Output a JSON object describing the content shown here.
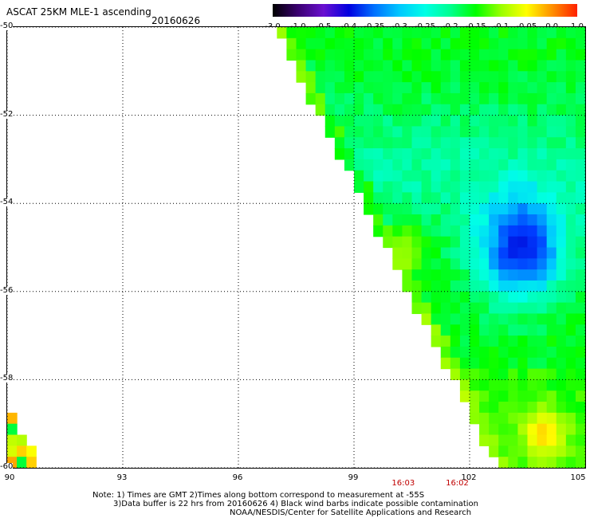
{
  "header": {
    "title": "ASCAT 25KM MLE-1 ascending",
    "date": "20160626"
  },
  "colorbar": {
    "labels": [
      "-3.0",
      "-1.0",
      "-0.5",
      "-0.4",
      "-0.35",
      "-0.3",
      "-0.25",
      "-0.2",
      "-0.15",
      "-0.1",
      "-0.05",
      "0.0",
      "1.0"
    ],
    "colors": [
      "#000000",
      "#3a0070",
      "#6a10d0",
      "#0000e0",
      "#0070ff",
      "#00c8ff",
      "#00ffe6",
      "#00ff90",
      "#00ff00",
      "#9aff00",
      "#ffff00",
      "#ff9000",
      "#ff2000"
    ]
  },
  "map": {
    "lat_labels": [
      "-50",
      "-52",
      "-54",
      "-56",
      "-58",
      "-60"
    ],
    "lon_labels": [
      "90",
      "93",
      "96",
      "99",
      "102",
      "105"
    ],
    "lat_range": [
      -60,
      -50
    ],
    "lon_range": [
      90,
      105
    ],
    "grid": "dotted",
    "swath_edge": [
      [
        96.8,
        -50
      ],
      [
        102.6,
        -60
      ]
    ],
    "low_mle_region": {
      "center_lon": 103.2,
      "center_lat": -54.9,
      "value": -0.4
    },
    "high_mle_spots": [
      {
        "lon": 100.2,
        "lat": -54.9,
        "value": -0.1
      },
      {
        "lon": 103.8,
        "lat": -59.1,
        "value": -0.05
      },
      {
        "lon": 90.2,
        "lat": -59.4,
        "value": -0.05
      }
    ]
  },
  "times": [
    {
      "label": "16:03",
      "lon": 100.3
    },
    {
      "label": "16:02",
      "lon": 101.7
    }
  ],
  "notes": {
    "line1": "Note: 1) Times are GMT 2)Times along bottom correspond to measurement at -55S",
    "line2": "3)Data buffer is 22 hrs from 20160626 4) Black wind barbs indicate possible contamination",
    "line3": "NOAA/NESDIS/Center for Satellite Applications and Research"
  }
}
